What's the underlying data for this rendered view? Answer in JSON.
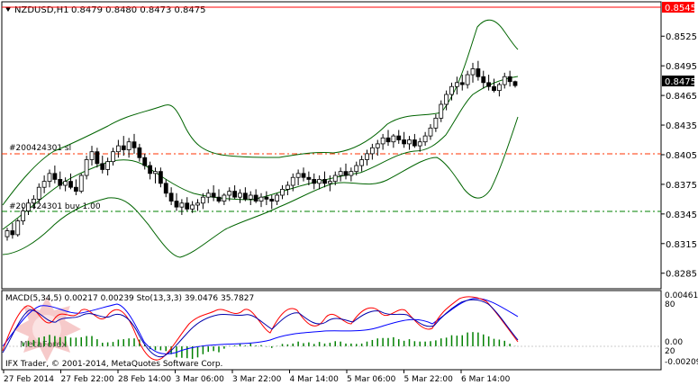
{
  "header": {
    "symbol": "NZDUSD,H1",
    "ohlc": "0.8479 0.8480 0.8473 0.8475"
  },
  "price_axis": {
    "ticks": [
      "0.8525",
      "0.8495",
      "0.8465",
      "0.8435",
      "0.8405",
      "0.8375",
      "0.8345",
      "0.8315",
      "0.8285"
    ],
    "current_price": "0.8475",
    "red_line_price": "0.8545"
  },
  "orders": [
    {
      "label": "#200424301 sl"
    },
    {
      "label": "#200424301 buy 1.00"
    }
  ],
  "indicator": {
    "title": "MACD(5,34,5) 0.00217 0.00239  Sto(13,3,3) 39.0476 35.7827",
    "scale_labels": [
      "0.00461",
      "80",
      "0.00",
      "20",
      "-0.00209"
    ]
  },
  "watermark": "MetaForex",
  "copyright": "IFX Trader, © 2001-2014, MetaQuotes Software Corp.",
  "time_axis": [
    "27 Feb 2014",
    "27 Feb 22:00",
    "28 Feb 14:00",
    "3 Mar 06:00",
    "3 Mar 22:00",
    "4 Mar 14:00",
    "5 Mar 06:00",
    "5 Mar 22:00",
    "6 Mar 14:00"
  ],
  "colors": {
    "candles": "#000000",
    "bands": "#006400",
    "macd_hist": "#008000",
    "stoch_main": "#ff0000",
    "stoch_signal": "#0000aa",
    "macd_signal": "#0000ff",
    "sl_line": "#ff3300",
    "entry_line": "#008000",
    "red_level": "#ff0000"
  },
  "chart_data": {
    "type": "candlestick",
    "ylim": [
      0.8272,
      0.8558
    ],
    "candles": [
      [
        0.8322,
        0.8331,
        0.8318,
        0.8328
      ],
      [
        0.8328,
        0.8336,
        0.832,
        0.8324
      ],
      [
        0.8324,
        0.834,
        0.8322,
        0.8338
      ],
      [
        0.8338,
        0.8352,
        0.8334,
        0.8348
      ],
      [
        0.8348,
        0.836,
        0.8344,
        0.8356
      ],
      [
        0.8356,
        0.8364,
        0.835,
        0.836
      ],
      [
        0.836,
        0.8376,
        0.8356,
        0.8372
      ],
      [
        0.8372,
        0.8384,
        0.8366,
        0.8378
      ],
      [
        0.8378,
        0.839,
        0.8372,
        0.8386
      ],
      [
        0.8386,
        0.8394,
        0.8376,
        0.838
      ],
      [
        0.838,
        0.8388,
        0.837,
        0.8374
      ],
      [
        0.8374,
        0.8382,
        0.8368,
        0.8378
      ],
      [
        0.8378,
        0.8386,
        0.837,
        0.8372
      ],
      [
        0.8372,
        0.838,
        0.8364,
        0.8368
      ],
      [
        0.8368,
        0.8386,
        0.8366,
        0.8384
      ],
      [
        0.8384,
        0.8404,
        0.838,
        0.84
      ],
      [
        0.84,
        0.8414,
        0.8394,
        0.8408
      ],
      [
        0.8408,
        0.8412,
        0.8392,
        0.8396
      ],
      [
        0.8396,
        0.8404,
        0.8386,
        0.839
      ],
      [
        0.839,
        0.8402,
        0.8384,
        0.8398
      ],
      [
        0.8398,
        0.8412,
        0.8394,
        0.8408
      ],
      [
        0.8408,
        0.842,
        0.8402,
        0.8414
      ],
      [
        0.8414,
        0.8424,
        0.8404,
        0.841
      ],
      [
        0.841,
        0.8422,
        0.8402,
        0.8418
      ],
      [
        0.8418,
        0.8426,
        0.8406,
        0.8412
      ],
      [
        0.8412,
        0.8416,
        0.8398,
        0.8402
      ],
      [
        0.8402,
        0.8406,
        0.839,
        0.8394
      ],
      [
        0.8394,
        0.8398,
        0.838,
        0.8386
      ],
      [
        0.8386,
        0.8392,
        0.8376,
        0.8388
      ],
      [
        0.8388,
        0.8392,
        0.8372,
        0.8376
      ],
      [
        0.8376,
        0.838,
        0.8362,
        0.8366
      ],
      [
        0.8366,
        0.8372,
        0.8354,
        0.8358
      ],
      [
        0.8358,
        0.8366,
        0.8348,
        0.8352
      ],
      [
        0.8352,
        0.836,
        0.8344,
        0.8356
      ],
      [
        0.8356,
        0.8362,
        0.8348,
        0.835
      ],
      [
        0.835,
        0.8358,
        0.8346,
        0.8354
      ],
      [
        0.8354,
        0.836,
        0.8348,
        0.8356
      ],
      [
        0.8356,
        0.8366,
        0.835,
        0.8362
      ],
      [
        0.8362,
        0.837,
        0.8356,
        0.8366
      ],
      [
        0.8366,
        0.8374,
        0.8358,
        0.8362
      ],
      [
        0.8362,
        0.837,
        0.8356,
        0.8358
      ],
      [
        0.8358,
        0.8366,
        0.8354,
        0.8364
      ],
      [
        0.8364,
        0.8372,
        0.8358,
        0.8368
      ],
      [
        0.8368,
        0.8374,
        0.836,
        0.8362
      ],
      [
        0.8362,
        0.837,
        0.8356,
        0.8366
      ],
      [
        0.8366,
        0.8372,
        0.8358,
        0.836
      ],
      [
        0.836,
        0.8368,
        0.8354,
        0.8364
      ],
      [
        0.8364,
        0.837,
        0.8356,
        0.8358
      ],
      [
        0.8358,
        0.8366,
        0.8352,
        0.8362
      ],
      [
        0.8362,
        0.8368,
        0.8354,
        0.836
      ],
      [
        0.836,
        0.8364,
        0.835,
        0.8358
      ],
      [
        0.8358,
        0.8366,
        0.8354,
        0.8364
      ],
      [
        0.8364,
        0.8374,
        0.836,
        0.837
      ],
      [
        0.837,
        0.8378,
        0.8364,
        0.8374
      ],
      [
        0.8374,
        0.8386,
        0.8368,
        0.8382
      ],
      [
        0.8382,
        0.839,
        0.8374,
        0.8386
      ],
      [
        0.8386,
        0.8392,
        0.8378,
        0.8382
      ],
      [
        0.8382,
        0.8388,
        0.8374,
        0.838
      ],
      [
        0.838,
        0.8386,
        0.837,
        0.8376
      ],
      [
        0.8376,
        0.8384,
        0.837,
        0.838
      ],
      [
        0.838,
        0.8388,
        0.8372,
        0.8376
      ],
      [
        0.8376,
        0.8384,
        0.8368,
        0.8378
      ],
      [
        0.8378,
        0.8388,
        0.8374,
        0.8384
      ],
      [
        0.8384,
        0.8392,
        0.8378,
        0.8388
      ],
      [
        0.8388,
        0.8396,
        0.838,
        0.8384
      ],
      [
        0.8384,
        0.8392,
        0.8378,
        0.8388
      ],
      [
        0.8388,
        0.8398,
        0.8384,
        0.8394
      ],
      [
        0.8394,
        0.8404,
        0.8388,
        0.84
      ],
      [
        0.84,
        0.841,
        0.8394,
        0.8406
      ],
      [
        0.8406,
        0.8416,
        0.84,
        0.8412
      ],
      [
        0.8412,
        0.842,
        0.8404,
        0.8416
      ],
      [
        0.8416,
        0.8426,
        0.841,
        0.8422
      ],
      [
        0.8422,
        0.843,
        0.8414,
        0.8418
      ],
      [
        0.8418,
        0.8426,
        0.8412,
        0.8424
      ],
      [
        0.8424,
        0.843,
        0.8416,
        0.842
      ],
      [
        0.842,
        0.8428,
        0.8412,
        0.8416
      ],
      [
        0.8416,
        0.8424,
        0.841,
        0.842
      ],
      [
        0.842,
        0.8426,
        0.8412,
        0.8414
      ],
      [
        0.8414,
        0.8422,
        0.8408,
        0.8418
      ],
      [
        0.8418,
        0.8428,
        0.8414,
        0.8424
      ],
      [
        0.8424,
        0.8436,
        0.842,
        0.8432
      ],
      [
        0.8432,
        0.8446,
        0.8428,
        0.8442
      ],
      [
        0.8442,
        0.846,
        0.8438,
        0.8456
      ],
      [
        0.8456,
        0.847,
        0.845,
        0.8466
      ],
      [
        0.8466,
        0.8478,
        0.846,
        0.8474
      ],
      [
        0.8474,
        0.8484,
        0.8466,
        0.8478
      ],
      [
        0.8478,
        0.8486,
        0.847,
        0.8476
      ],
      [
        0.8476,
        0.849,
        0.8472,
        0.8486
      ],
      [
        0.8486,
        0.8498,
        0.8478,
        0.8492
      ],
      [
        0.8492,
        0.85,
        0.848,
        0.8484
      ],
      [
        0.8484,
        0.849,
        0.8472,
        0.8478
      ],
      [
        0.8478,
        0.8486,
        0.847,
        0.8474
      ],
      [
        0.8474,
        0.8482,
        0.8468,
        0.847
      ],
      [
        0.847,
        0.8478,
        0.8464,
        0.8476
      ],
      [
        0.8476,
        0.8488,
        0.8472,
        0.8484
      ],
      [
        0.8484,
        0.849,
        0.8474,
        0.8479
      ],
      [
        0.8479,
        0.848,
        0.8473,
        0.8475
      ]
    ]
  }
}
